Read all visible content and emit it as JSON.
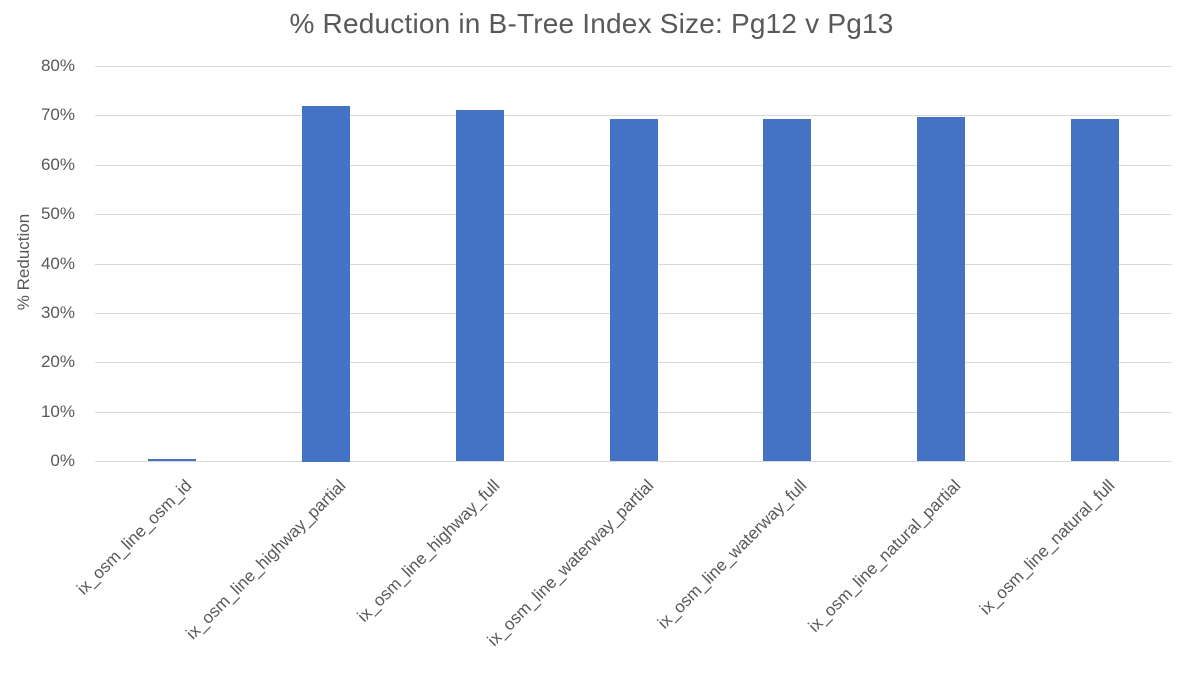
{
  "chart_data": {
    "type": "bar",
    "title": "% Reduction in B-Tree Index Size: Pg12 v Pg13",
    "xlabel": "",
    "ylabel": "% Reduction",
    "categories": [
      "ix_osm_line_osm_id",
      "ix_osm_line_highway_partial",
      "ix_osm_line_highway_full",
      "ix_osm_line_waterway_partial",
      "ix_osm_line_waterway_full",
      "ix_osm_line_natural_partial",
      "ix_osm_line_natural_full"
    ],
    "values": [
      0.5,
      72.0,
      71.0,
      69.3,
      69.2,
      69.6,
      69.2
    ],
    "ylim": [
      0,
      80
    ],
    "ytick_step": 10,
    "ytick_labels": [
      "0%",
      "10%",
      "20%",
      "30%",
      "40%",
      "50%",
      "60%",
      "70%",
      "80%"
    ],
    "grid": "horizontal",
    "legend": "none",
    "colors": {
      "bar": "#4472C4",
      "gridline": "#D9D9D9",
      "text": "#595959",
      "background": "#FFFFFF"
    }
  }
}
